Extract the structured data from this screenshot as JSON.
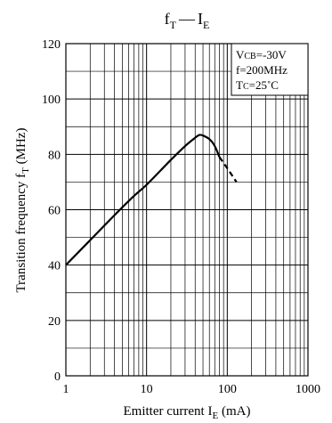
{
  "chart_data": {
    "type": "line",
    "title": {
      "main": "f",
      "main_sub": "T",
      "dash": "—",
      "second": "I",
      "second_sub": "E"
    },
    "ylabel": {
      "text": "Transition frequency  f",
      "sub": "T",
      "unit": "  (MHz)"
    },
    "xlabel": {
      "text": "Emitter current  I",
      "sub": "E",
      "unit": "  (mA)"
    },
    "x_scale": "log",
    "xlim": [
      1,
      1000
    ],
    "ylim": [
      0,
      120
    ],
    "x_ticks": [
      1,
      10,
      100,
      1000
    ],
    "x_tick_labels": [
      "1",
      "10",
      "100",
      "1000"
    ],
    "y_ticks": [
      0,
      20,
      40,
      60,
      80,
      100,
      120
    ],
    "y_tick_labels": [
      "0",
      "20",
      "40",
      "60",
      "80",
      "100",
      "120"
    ],
    "grid": true,
    "legend_placement": "top-right",
    "conditions": [
      {
        "main": "V",
        "sub": "CB",
        "value": "=-30V"
      },
      {
        "main": "f=200MHz",
        "sub": "",
        "value": ""
      },
      {
        "main": "T",
        "sub": "C",
        "value": "=25˚C"
      }
    ],
    "series": [
      {
        "x": [
          1,
          2,
          4,
          7,
          10,
          20,
          30,
          40,
          45,
          50,
          60,
          70,
          80
        ],
        "y": [
          40,
          49,
          58,
          65,
          69,
          78,
          83,
          86,
          87,
          86.8,
          85.5,
          83,
          79
        ],
        "style": "solid"
      },
      {
        "x": [
          80,
          100,
          130
        ],
        "y": [
          79,
          75,
          70
        ],
        "style": "dashed"
      }
    ],
    "line_color": "#000000",
    "watermark_color": "#f0a8a8"
  }
}
